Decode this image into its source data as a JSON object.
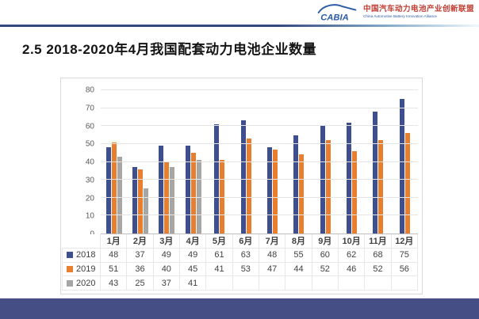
{
  "header": {
    "logo_text": "CABIA",
    "org_name_zh": "中国汽车动力电池产业创新联盟",
    "org_name_en": "China Automotive Battery Innovation Alliance"
  },
  "title": "2.5 2018-2020年4月我国配套动力电池企业数量",
  "colors": {
    "logo_blue": "#2C5BA7",
    "logo_red": "#C13B2F",
    "header_rule_navy": "#33497C",
    "footer_navy": "#454F85",
    "axis_label_gray": "#595959",
    "table_text_gray": "#404040"
  },
  "chart_data": {
    "type": "bar",
    "title": "",
    "xlabel": "",
    "ylabel": "",
    "categories": [
      "1月",
      "2月",
      "3月",
      "4月",
      "5月",
      "6月",
      "7月",
      "8月",
      "9月",
      "10月",
      "11月",
      "12月"
    ],
    "series": [
      {
        "name": "2018",
        "color": "#3F4E8C",
        "values": [
          48,
          37,
          49,
          49,
          61,
          63,
          48,
          55,
          60,
          62,
          68,
          75
        ]
      },
      {
        "name": "2019",
        "color": "#E97E2E",
        "values": [
          51,
          36,
          40,
          45,
          41,
          53,
          47,
          44,
          52,
          46,
          52,
          56
        ]
      },
      {
        "name": "2020",
        "color": "#A6A6A6",
        "values": [
          43,
          25,
          37,
          41,
          null,
          null,
          null,
          null,
          null,
          null,
          null,
          null
        ]
      }
    ],
    "ylim": [
      0,
      80
    ],
    "yticks": [
      0,
      10,
      20,
      30,
      40,
      50,
      60,
      70,
      80
    ],
    "grid": true,
    "legend_position": "data-table-left",
    "data_table": true
  }
}
